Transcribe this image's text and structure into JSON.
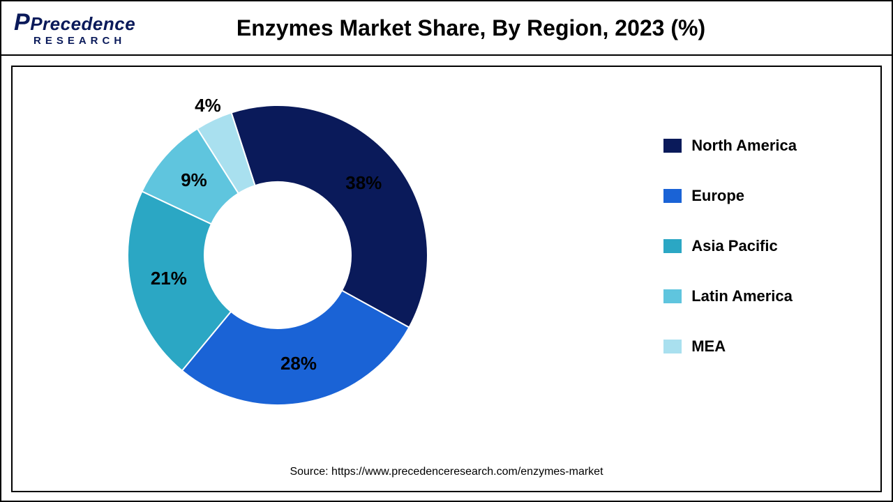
{
  "logo": {
    "brand_top": "Precedence",
    "brand_bottom": "RESEARCH"
  },
  "title": "Enzymes Market Share, By Region, 2023 (%)",
  "source": "Source: https://www.precedenceresearch.com/enzymes-market",
  "chart": {
    "type": "donut",
    "background_color": "#ffffff",
    "border_color": "#000000",
    "inner_radius": 105,
    "outer_radius": 215,
    "title_fontsize": 32,
    "title_fontweight": 700,
    "label_fontsize": 26,
    "label_fontweight": 700,
    "label_color": "#000000",
    "slices": [
      {
        "label": "North America",
        "value": 38,
        "display": "38%",
        "color": "#0a1a5a"
      },
      {
        "label": "Europe",
        "value": 28,
        "display": "28%",
        "color": "#1a63d6"
      },
      {
        "label": "Asia Pacific",
        "value": 21,
        "display": "21%",
        "color": "#2ba7c4"
      },
      {
        "label": "Latin America",
        "value": 9,
        "display": "9%",
        "color": "#5fc5de"
      },
      {
        "label": "MEA",
        "value": 4,
        "display": "4%",
        "color": "#a9e0ef"
      }
    ],
    "start_angle_deg": -18
  },
  "legend": {
    "swatch_w": 26,
    "swatch_h": 20,
    "gap": 46,
    "label_fontsize": 22,
    "label_fontweight": 700
  }
}
